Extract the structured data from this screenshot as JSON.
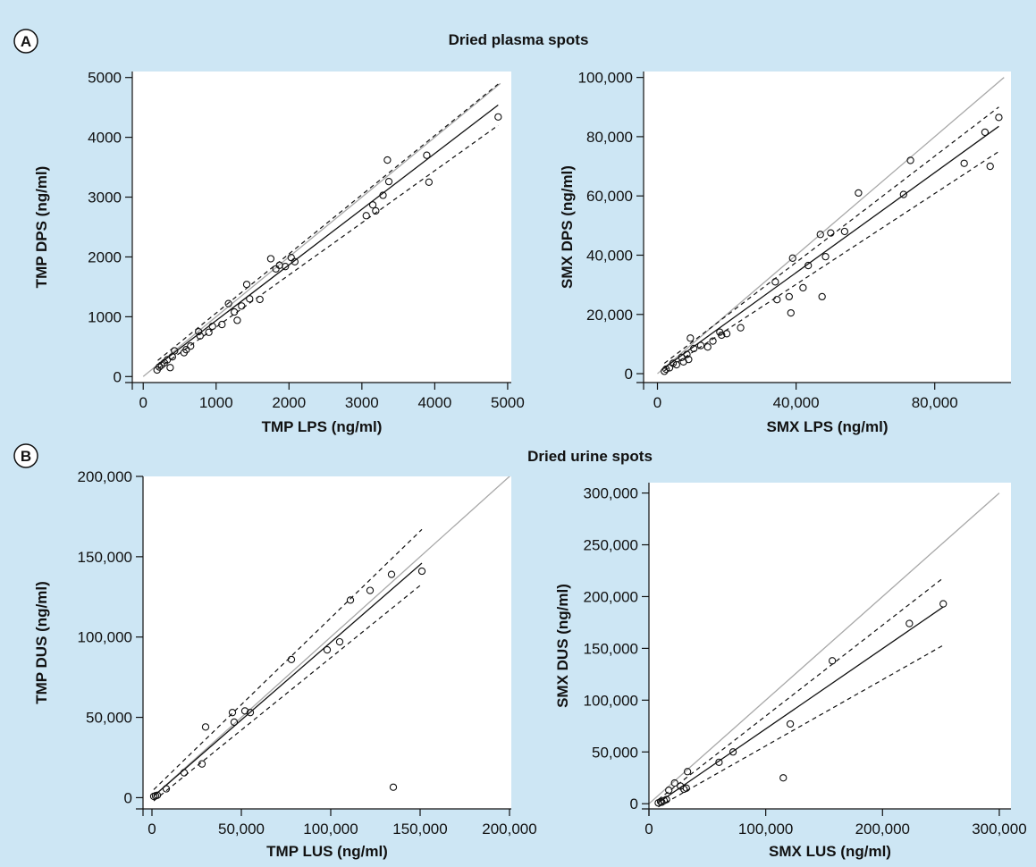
{
  "figure": {
    "background": "#cde6f4",
    "panel_titles": {
      "A": "Dried plasma spots",
      "B": "Dried urine spots"
    },
    "badges": [
      "A",
      "B"
    ]
  },
  "chart_data": [
    {
      "id": "tmp-plasma",
      "type": "scatter",
      "xlabel": "TMP LPS (ng/ml)",
      "ylabel": "TMP DPS (ng/ml)",
      "xlim": [
        -150,
        5050
      ],
      "ylim": [
        -100,
        5100
      ],
      "xticks": [
        0,
        1000,
        2000,
        3000,
        4000,
        5000
      ],
      "yticks": [
        0,
        1000,
        2000,
        3000,
        4000,
        5000
      ],
      "xtick_labels": [
        "0",
        "1000",
        "2000",
        "3000",
        "4000",
        "5000"
      ],
      "ytick_labels": [
        "0",
        "1000",
        "2000",
        "3000",
        "4000",
        "5000"
      ],
      "points": [
        [
          190,
          110
        ],
        [
          220,
          160
        ],
        [
          250,
          190
        ],
        [
          290,
          230
        ],
        [
          330,
          280
        ],
        [
          370,
          150
        ],
        [
          400,
          330
        ],
        [
          430,
          430
        ],
        [
          560,
          400
        ],
        [
          590,
          450
        ],
        [
          650,
          510
        ],
        [
          760,
          750
        ],
        [
          780,
          680
        ],
        [
          900,
          740
        ],
        [
          950,
          840
        ],
        [
          1080,
          870
        ],
        [
          1170,
          1220
        ],
        [
          1250,
          1080
        ],
        [
          1290,
          940
        ],
        [
          1350,
          1180
        ],
        [
          1420,
          1540
        ],
        [
          1460,
          1300
        ],
        [
          1600,
          1290
        ],
        [
          1750,
          1970
        ],
        [
          1820,
          1800
        ],
        [
          1870,
          1860
        ],
        [
          1950,
          1840
        ],
        [
          2030,
          1990
        ],
        [
          2080,
          1920
        ],
        [
          3060,
          2690
        ],
        [
          3150,
          2870
        ],
        [
          3190,
          2770
        ],
        [
          3290,
          3030
        ],
        [
          3350,
          3620
        ],
        [
          3370,
          3260
        ],
        [
          3890,
          3700
        ],
        [
          3920,
          3250
        ],
        [
          4870,
          4340
        ]
      ],
      "identity_line": {
        "from": [
          0,
          0
        ],
        "to": [
          4900,
          4900
        ]
      },
      "fit_line": {
        "from": [
          200,
          190
        ],
        "to": [
          4870,
          4540
        ]
      },
      "ci_upper": {
        "from": [
          200,
          270
        ],
        "to": [
          4870,
          4890
        ]
      },
      "ci_lower": {
        "from": [
          200,
          130
        ],
        "to": [
          4870,
          4200
        ]
      }
    },
    {
      "id": "smx-plasma",
      "type": "scatter",
      "xlabel": "SMX LPS (ng/ml)",
      "ylabel": "SMX DPS (ng/ml)",
      "xlim": [
        -4000,
        102000
      ],
      "ylim": [
        -3000,
        102000
      ],
      "xticks": [
        0,
        40000,
        80000
      ],
      "yticks": [
        0,
        20000,
        40000,
        60000,
        80000,
        100000
      ],
      "xtick_labels": [
        "0",
        "40,000",
        "80,000"
      ],
      "ytick_labels": [
        "0",
        "20,000",
        "40,000",
        "60,000",
        "80,000",
        "100,000"
      ],
      "points": [
        [
          2000,
          800
        ],
        [
          2500,
          1500
        ],
        [
          3500,
          2000
        ],
        [
          4500,
          3500
        ],
        [
          5500,
          3000
        ],
        [
          7000,
          5500
        ],
        [
          7500,
          4000
        ],
        [
          8500,
          6500
        ],
        [
          9000,
          4800
        ],
        [
          9500,
          12000
        ],
        [
          10500,
          8500
        ],
        [
          12500,
          9500
        ],
        [
          14500,
          9000
        ],
        [
          16000,
          11000
        ],
        [
          18000,
          14000
        ],
        [
          18500,
          13000
        ],
        [
          20000,
          13500
        ],
        [
          24000,
          15500
        ],
        [
          34000,
          31000
        ],
        [
          34500,
          25000
        ],
        [
          38000,
          26000
        ],
        [
          38500,
          20500
        ],
        [
          39000,
          39000
        ],
        [
          42000,
          29000
        ],
        [
          43500,
          36500
        ],
        [
          47000,
          47000
        ],
        [
          47500,
          26000
        ],
        [
          48500,
          39500
        ],
        [
          50000,
          47500
        ],
        [
          54000,
          48000
        ],
        [
          58000,
          61000
        ],
        [
          71000,
          60500
        ],
        [
          73000,
          72000
        ],
        [
          88500,
          71000
        ],
        [
          94500,
          81500
        ],
        [
          96000,
          70000
        ],
        [
          98500,
          86500
        ]
      ],
      "identity_line": {
        "from": [
          0,
          0
        ],
        "to": [
          100000,
          100000
        ]
      },
      "fit_line": {
        "from": [
          2000,
          2000
        ],
        "to": [
          98500,
          83500
        ]
      },
      "ci_upper": {
        "from": [
          2000,
          3500
        ],
        "to": [
          98500,
          90000
        ]
      },
      "ci_lower": {
        "from": [
          2000,
          1000
        ],
        "to": [
          98500,
          75000
        ]
      }
    },
    {
      "id": "tmp-urine",
      "type": "scatter",
      "xlabel": "TMP LUS (ng/ml)",
      "ylabel": "TMP DUS (ng/ml)",
      "xlim": [
        -5000,
        201000
      ],
      "ylim": [
        -7000,
        200000
      ],
      "xticks": [
        0,
        50000,
        100000,
        150000,
        200000
      ],
      "yticks": [
        0,
        50000,
        100000,
        150000,
        200000
      ],
      "xtick_labels": [
        "0",
        "50,000",
        "100,000",
        "150,000",
        "200,000"
      ],
      "ytick_labels": [
        "0",
        "50,000",
        "100,000",
        "150,000",
        "200,000"
      ],
      "points": [
        [
          1000,
          800
        ],
        [
          2000,
          1200
        ],
        [
          3000,
          1500
        ],
        [
          8000,
          5500
        ],
        [
          18000,
          15500
        ],
        [
          28000,
          21000
        ],
        [
          30000,
          44000
        ],
        [
          45000,
          53000
        ],
        [
          46000,
          47000
        ],
        [
          52000,
          54000
        ],
        [
          55000,
          53000
        ],
        [
          78000,
          86000
        ],
        [
          98000,
          92000
        ],
        [
          105000,
          97000
        ],
        [
          111000,
          123000
        ],
        [
          122000,
          129000
        ],
        [
          134000,
          139000
        ],
        [
          135000,
          6500
        ],
        [
          151000,
          141000
        ]
      ],
      "identity_line": {
        "from": [
          0,
          0
        ],
        "to": [
          201000,
          201000
        ]
      },
      "fit_line": {
        "from": [
          1000,
          1000
        ],
        "to": [
          151000,
          146000
        ]
      },
      "ci_upper": {
        "from": [
          1000,
          5000
        ],
        "to": [
          151000,
          167000
        ]
      },
      "ci_lower": {
        "from": [
          1000,
          -2000
        ],
        "to": [
          151000,
          133000
        ]
      }
    },
    {
      "id": "smx-urine",
      "type": "scatter",
      "xlabel": "SMX LUS (ng/ml)",
      "ylabel": "SMX DUS (ng/ml)",
      "xlim": [
        0,
        310000
      ],
      "ylim": [
        -5000,
        310000
      ],
      "xticks": [
        0,
        100000,
        200000,
        300000
      ],
      "yticks": [
        0,
        50000,
        100000,
        150000,
        200000,
        250000,
        300000
      ],
      "xtick_labels": [
        "0",
        "100,000",
        "200,000",
        "300,000"
      ],
      "ytick_labels": [
        "0",
        "50,000",
        "100,000",
        "150,000",
        "200,000",
        "250,000",
        "300,000"
      ],
      "points": [
        [
          8000,
          800
        ],
        [
          10000,
          2000
        ],
        [
          11000,
          1500
        ],
        [
          13000,
          3000
        ],
        [
          15000,
          4000
        ],
        [
          17000,
          13000
        ],
        [
          22000,
          20000
        ],
        [
          27000,
          17000
        ],
        [
          30000,
          14000
        ],
        [
          32000,
          15000
        ],
        [
          33000,
          31000
        ],
        [
          60000,
          40000
        ],
        [
          72000,
          50000
        ],
        [
          115000,
          25000
        ],
        [
          121000,
          77000
        ],
        [
          157000,
          138000
        ],
        [
          223000,
          174000
        ],
        [
          252000,
          193000
        ]
      ],
      "identity_line": {
        "from": [
          0,
          0
        ],
        "to": [
          300000,
          300000
        ]
      },
      "fit_line": {
        "from": [
          8000,
          1000
        ],
        "to": [
          252000,
          190000
        ]
      },
      "ci_upper": {
        "from": [
          8000,
          4000
        ],
        "to": [
          252000,
          218000
        ]
      },
      "ci_lower": {
        "from": [
          8000,
          -3000
        ],
        "to": [
          252000,
          153000
        ]
      }
    }
  ]
}
